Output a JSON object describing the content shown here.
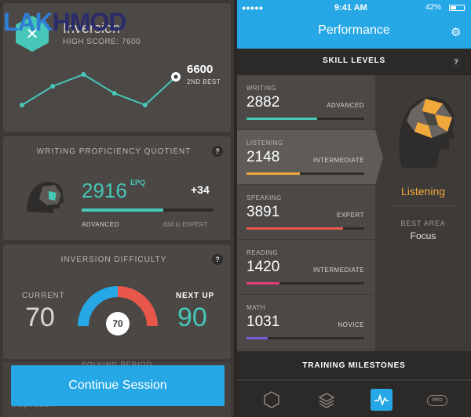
{
  "watermark": {
    "part1": "LAK",
    "part2": "HMOD"
  },
  "left_screen": {
    "game": {
      "title": "Inversion",
      "high_score": "HIGH SCORE: 7600",
      "best_value": "6600",
      "best_label": "2ND BEST",
      "chart_data": {
        "type": "line",
        "values": [
          0.2,
          0.6,
          0.85,
          0.45,
          0.2,
          0.8
        ],
        "highlight_last": true
      }
    },
    "wpq": {
      "title": "WRITING PROFICIENCY QUOTIENT",
      "help": "?",
      "value": "2916",
      "unit": "EPQ",
      "delta": "+34",
      "level": "ADVANCED",
      "next": "834 to EXPERT",
      "progress": 0.62,
      "accent": "#47c7b7"
    },
    "difficulty": {
      "title": "INVERSION DIFFICULTY",
      "help": "?",
      "current_label": "CURRENT",
      "current_value": "70",
      "next_label": "NEXT UP",
      "next_value": "90",
      "badge": "70"
    },
    "continue_button": "Continue Session",
    "partial_section": "SOLVING PERIOD",
    "partial_text": "Inspiration"
  },
  "right_screen": {
    "status": {
      "carrier": "●●●●● ",
      "time": "9:41 AM",
      "battery": "42%"
    },
    "title": "Performance",
    "gear_icon": "gear-icon",
    "skill_levels_title": "SKILL LEVELS",
    "help": "?",
    "skills": [
      {
        "name": "WRITING",
        "score": "2882",
        "level": "ADVANCED",
        "progress": 0.6,
        "color": "#47c7b7"
      },
      {
        "name": "LISTENING",
        "score": "2148",
        "level": "INTERMEDIATE",
        "progress": 0.45,
        "color": "#f2a93b"
      },
      {
        "name": "SPEAKING",
        "score": "3891",
        "level": "EXPERT",
        "progress": 0.82,
        "color": "#e8574a"
      },
      {
        "name": "READING",
        "score": "1420",
        "level": "INTERMEDIATE",
        "progress": 0.28,
        "color": "#e53e7a"
      },
      {
        "name": "MATH",
        "score": "1031",
        "level": "NOVICE",
        "progress": 0.18,
        "color": "#7a5ad6"
      }
    ],
    "focus": {
      "skill": "Listening",
      "best_area_label": "BEST AREA",
      "best_area_value": "Focus"
    },
    "milestones_title": "TRAINING MILESTONES",
    "tabs": {
      "pro_label": "PRO"
    }
  }
}
